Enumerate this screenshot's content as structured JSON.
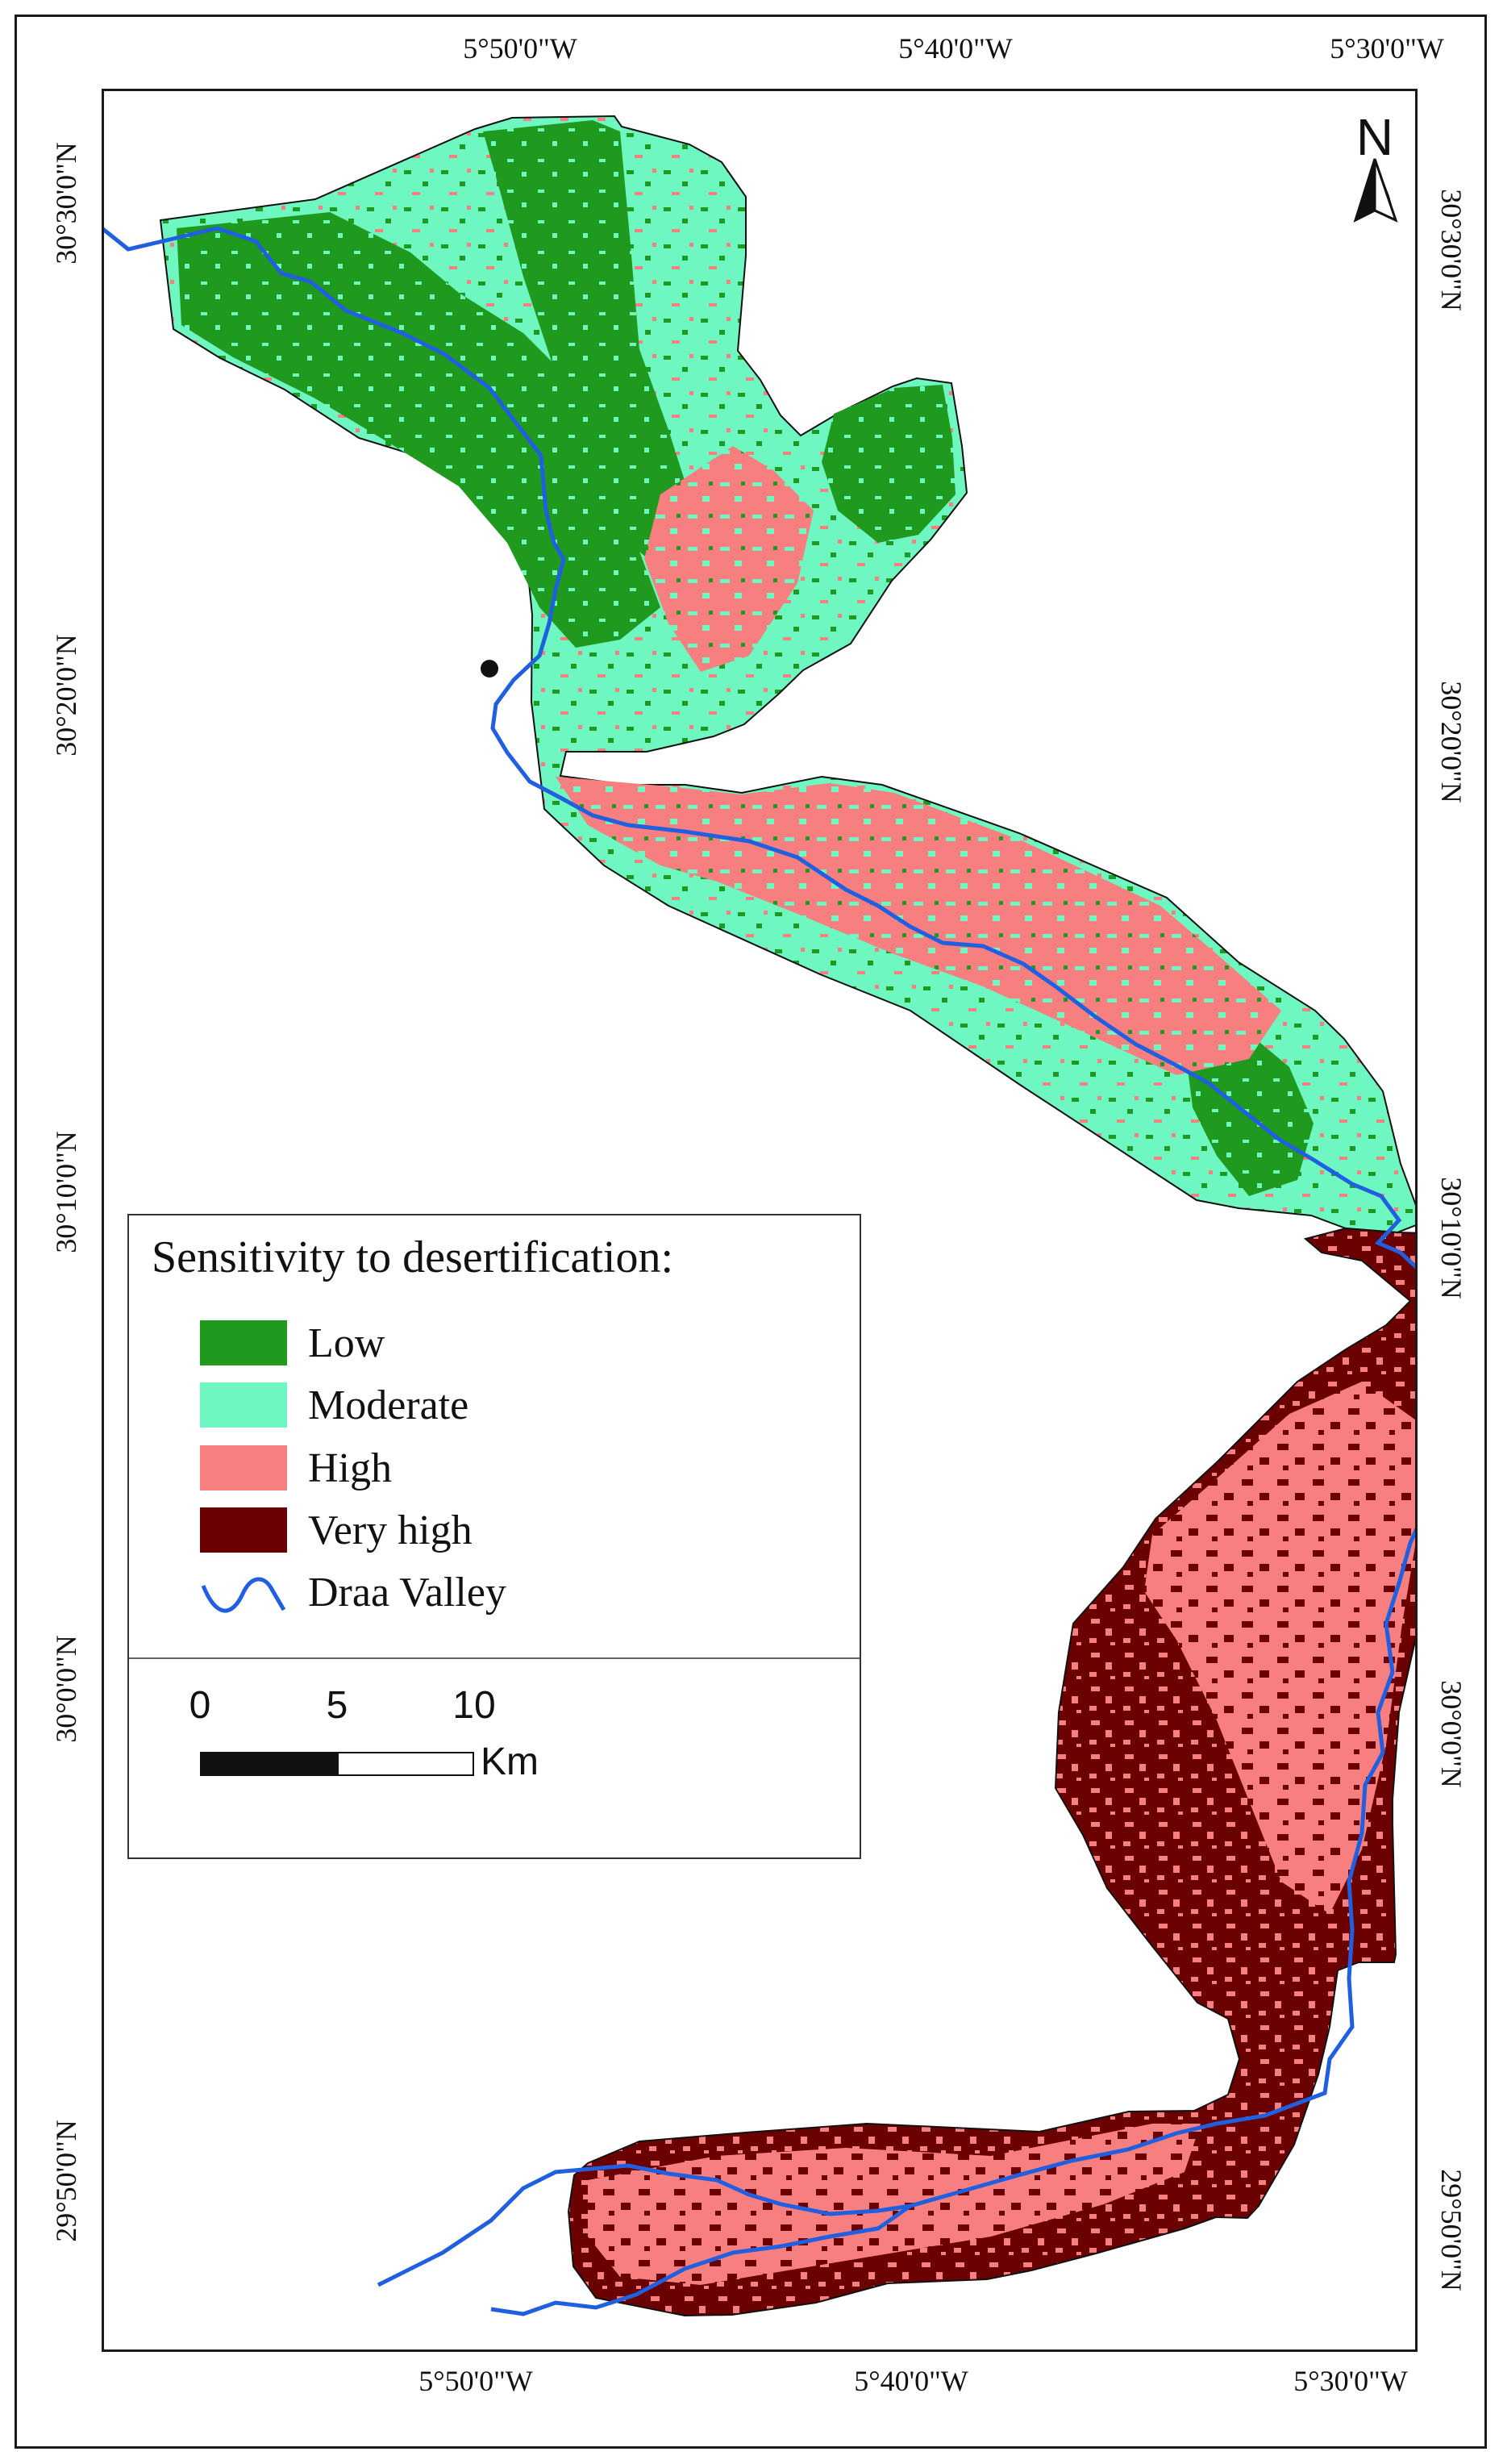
{
  "map": {
    "top_coords": [
      "5°50'0\"W",
      "5°40'0\"W",
      "5°30'0\"W"
    ],
    "bottom_coords": [
      "5°50'0\"W",
      "5°40'0\"W",
      "5°30'0\"W"
    ],
    "left_coords": [
      "30°30'0\"N",
      "30°20'0\"N",
      "30°10'0\"N",
      "30°0'0\"N",
      "29°50'0\"N"
    ],
    "right_coords": [
      "30°30'0\"N",
      "30°20'0\"N",
      "30°10'0\"N",
      "30°0'0\"N",
      "29°50'0\"N"
    ],
    "north_label": "N"
  },
  "legend": {
    "title": "Sensitivity to desertification:",
    "items": [
      {
        "label": "Low",
        "color": "#1f9a1f"
      },
      {
        "label": "Moderate",
        "color": "#6ef7c0"
      },
      {
        "label": "High",
        "color": "#f77f7f"
      },
      {
        "label": "Very high",
        "color": "#6b0000"
      }
    ],
    "river": {
      "label": "Draa Valley",
      "color": "#1f5fe0"
    }
  },
  "scalebar": {
    "labels": [
      "0",
      "5",
      "10"
    ],
    "unit": "Km"
  },
  "colors": {
    "low": "#1f9a1f",
    "moderate": "#6ef7c0",
    "high": "#f77f7f",
    "very_high": "#6b0000",
    "river": "#1f5fe0"
  }
}
